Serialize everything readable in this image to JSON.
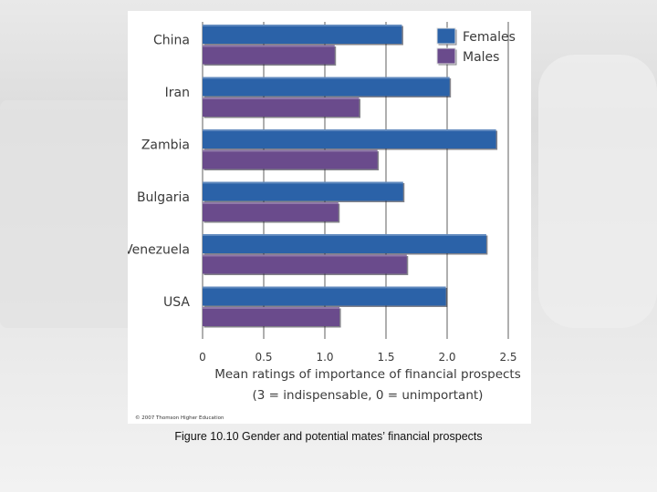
{
  "chart_data": {
    "type": "bar",
    "orientation": "horizontal",
    "categories": [
      "China",
      "Iran",
      "Zambia",
      "Bulgaria",
      "Venezuela",
      "USA"
    ],
    "series": [
      {
        "name": "Females",
        "color": "#2b62a8",
        "values": [
          1.63,
          2.02,
          2.4,
          1.64,
          2.32,
          1.99
        ]
      },
      {
        "name": "Males",
        "color": "#6a4b8c",
        "values": [
          1.08,
          1.28,
          1.43,
          1.11,
          1.67,
          1.12
        ]
      }
    ],
    "x_ticks": [
      "0",
      "0.5",
      "1.0",
      "1.5",
      "2.0",
      "2.5"
    ],
    "x_tick_values": [
      0,
      0.5,
      1.0,
      1.5,
      2.0,
      2.5
    ],
    "xlim": [
      0,
      2.5
    ],
    "xlabel_line1": "Mean ratings of importance of financial prospects",
    "xlabel_line2": "(3 = indispensable, 0 = unimportant)",
    "legend_position": "top-right",
    "grid": true
  },
  "copyright": "© 2007 Thomson Higher Education",
  "caption": "Figure 10.10  Gender and potential mates’ financial prospects"
}
